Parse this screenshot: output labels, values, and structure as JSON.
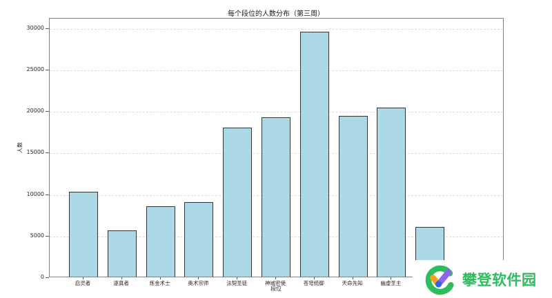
{
  "chart_data": {
    "type": "bar",
    "title": "每个段位的人数分布（第三周）",
    "xlabel": "段位",
    "ylabel": "人数",
    "categories": [
      "启灵者",
      "逐真者",
      "炼金术士",
      "奥术宗师",
      "法契圣徒",
      "神域密使",
      "苍穹统御",
      "天命先知",
      "幽虚圣主",
      ""
    ],
    "values": [
      10200,
      5600,
      8500,
      9000,
      17900,
      19200,
      29500,
      19300,
      20350,
      6000
    ],
    "ylim": [
      0,
      31200
    ],
    "yticks": [
      0,
      5000,
      10000,
      15000,
      20000,
      25000,
      30000
    ],
    "grid": "horizontal-dashed",
    "legend": "none",
    "bar_color": "#ADD8E6",
    "bar_edge_color": "#333333"
  },
  "watermark": {
    "text": "攀登软件园",
    "text_color": "#2BBD5E",
    "logo_colors": {
      "ring": "#2BBD5E",
      "check_left": "#F7A326",
      "check_right": "#8D66EA",
      "dot": "#2E68E0"
    }
  }
}
